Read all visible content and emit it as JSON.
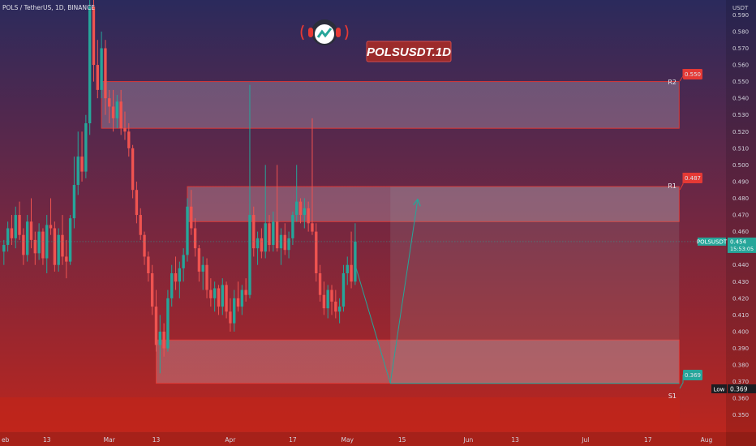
{
  "header": {
    "symbol_info": "POLS / TetherUS, 1D, BINANCE"
  },
  "watermark": {
    "text": "POLSUSDT.1D",
    "logo_icon": "headphones-mascot-icon"
  },
  "price_scale": {
    "currency": "USDT",
    "ticks": [
      "0.590",
      "0.580",
      "0.570",
      "0.560",
      "0.550",
      "0.540",
      "0.530",
      "0.520",
      "0.510",
      "0.500",
      "0.490",
      "0.480",
      "0.470",
      "0.460",
      "0.450",
      "0.440",
      "0.430",
      "0.420",
      "0.410",
      "0.400",
      "0.390",
      "0.380",
      "0.370",
      "0.360",
      "0.350"
    ]
  },
  "time_scale": {
    "labels": [
      "eb",
      "13",
      "Mar",
      "13",
      "Apr",
      "17",
      "May",
      "15",
      "Jun",
      "13",
      "Jul",
      "17",
      "Aug"
    ]
  },
  "current_price": {
    "label": "POLSUSDT",
    "value": "0.454",
    "countdown": "15:53:05"
  },
  "low_marker": {
    "label": "Low",
    "value": "0.369"
  },
  "levels": [
    {
      "label": "R2",
      "price": "0.550",
      "color": "#e53935"
    },
    {
      "label": "R1",
      "price": "0.487",
      "color": "#e53935"
    },
    {
      "label": "S1",
      "price": "0.369",
      "color": "#26a69a"
    }
  ],
  "colors": {
    "up": "#26a69a",
    "down": "#ef5350",
    "bg_top": "#2b2a5c",
    "bg_bottom": "#c0261c"
  },
  "chart_data": {
    "type": "candlestick",
    "title": "POLSUSDT.1D",
    "ylim": [
      0.345,
      0.597
    ],
    "x_range": [
      "2023-02-01",
      "2023-08-06"
    ],
    "candles": [
      [
        "2023-02-02",
        0.448,
        0.455,
        0.44,
        0.452
      ],
      [
        "2023-02-03",
        0.452,
        0.466,
        0.448,
        0.462
      ],
      [
        "2023-02-04",
        0.462,
        0.47,
        0.452,
        0.456
      ],
      [
        "2023-02-05",
        0.456,
        0.475,
        0.45,
        0.47
      ],
      [
        "2023-02-06",
        0.47,
        0.478,
        0.455,
        0.458
      ],
      [
        "2023-02-07",
        0.458,
        0.462,
        0.44,
        0.446
      ],
      [
        "2023-02-08",
        0.446,
        0.47,
        0.442,
        0.466
      ],
      [
        "2023-02-09",
        0.466,
        0.48,
        0.45,
        0.455
      ],
      [
        "2023-02-10",
        0.455,
        0.46,
        0.44,
        0.447
      ],
      [
        "2023-02-11",
        0.447,
        0.465,
        0.443,
        0.46
      ],
      [
        "2023-02-12",
        0.46,
        0.462,
        0.44,
        0.444
      ],
      [
        "2023-02-13",
        0.444,
        0.47,
        0.435,
        0.464
      ],
      [
        "2023-02-14",
        0.464,
        0.48,
        0.458,
        0.462
      ],
      [
        "2023-02-15",
        0.462,
        0.466,
        0.436,
        0.44
      ],
      [
        "2023-02-16",
        0.44,
        0.462,
        0.436,
        0.458
      ],
      [
        "2023-02-17",
        0.458,
        0.47,
        0.44,
        0.445
      ],
      [
        "2023-02-18",
        0.445,
        0.455,
        0.432,
        0.442
      ],
      [
        "2023-02-19",
        0.442,
        0.47,
        0.44,
        0.468
      ],
      [
        "2023-02-20",
        0.468,
        0.505,
        0.462,
        0.488
      ],
      [
        "2023-02-21",
        0.488,
        0.52,
        0.482,
        0.505
      ],
      [
        "2023-02-22",
        0.505,
        0.52,
        0.49,
        0.496
      ],
      [
        "2023-02-23",
        0.496,
        0.53,
        0.492,
        0.525
      ],
      [
        "2023-02-24",
        0.525,
        0.6,
        0.518,
        0.595
      ],
      [
        "2023-02-25",
        0.595,
        0.6,
        0.55,
        0.56
      ],
      [
        "2023-02-26",
        0.56,
        0.575,
        0.54,
        0.545
      ],
      [
        "2023-02-27",
        0.545,
        0.58,
        0.54,
        0.57
      ],
      [
        "2023-02-28",
        0.57,
        0.575,
        0.53,
        0.54
      ],
      [
        "2023-03-01",
        0.54,
        0.545,
        0.525,
        0.535
      ],
      [
        "2023-03-02",
        0.535,
        0.545,
        0.52,
        0.528
      ],
      [
        "2023-03-03",
        0.528,
        0.542,
        0.522,
        0.538
      ],
      [
        "2023-03-04",
        0.538,
        0.545,
        0.518,
        0.522
      ],
      [
        "2023-03-05",
        0.522,
        0.532,
        0.515,
        0.52
      ],
      [
        "2023-03-06",
        0.52,
        0.525,
        0.505,
        0.51
      ],
      [
        "2023-03-07",
        0.51,
        0.512,
        0.48,
        0.485
      ],
      [
        "2023-03-08",
        0.485,
        0.49,
        0.465,
        0.47
      ],
      [
        "2023-03-09",
        0.47,
        0.474,
        0.455,
        0.458
      ],
      [
        "2023-03-10",
        0.458,
        0.46,
        0.44,
        0.445
      ],
      [
        "2023-03-11",
        0.445,
        0.448,
        0.43,
        0.435
      ],
      [
        "2023-03-12",
        0.435,
        0.44,
        0.41,
        0.415
      ],
      [
        "2023-03-13",
        0.415,
        0.425,
        0.388,
        0.392
      ],
      [
        "2023-03-14",
        0.392,
        0.41,
        0.375,
        0.4
      ],
      [
        "2023-03-15",
        0.4,
        0.405,
        0.385,
        0.39
      ],
      [
        "2023-03-16",
        0.39,
        0.425,
        0.388,
        0.42
      ],
      [
        "2023-03-17",
        0.42,
        0.44,
        0.415,
        0.435
      ],
      [
        "2023-03-18",
        0.435,
        0.445,
        0.425,
        0.43
      ],
      [
        "2023-03-19",
        0.43,
        0.442,
        0.42,
        0.438
      ],
      [
        "2023-03-20",
        0.438,
        0.45,
        0.43,
        0.446
      ],
      [
        "2023-03-21",
        0.446,
        0.48,
        0.442,
        0.475
      ],
      [
        "2023-03-22",
        0.475,
        0.485,
        0.458,
        0.462
      ],
      [
        "2023-03-23",
        0.462,
        0.468,
        0.445,
        0.45
      ],
      [
        "2023-03-24",
        0.45,
        0.452,
        0.43,
        0.436
      ],
      [
        "2023-03-25",
        0.436,
        0.445,
        0.425,
        0.44
      ],
      [
        "2023-03-26",
        0.44,
        0.444,
        0.42,
        0.425
      ],
      [
        "2023-03-27",
        0.425,
        0.432,
        0.415,
        0.42
      ],
      [
        "2023-03-28",
        0.42,
        0.43,
        0.412,
        0.426
      ],
      [
        "2023-03-29",
        0.426,
        0.428,
        0.41,
        0.415
      ],
      [
        "2023-03-30",
        0.415,
        0.432,
        0.41,
        0.428
      ],
      [
        "2023-03-31",
        0.428,
        0.43,
        0.408,
        0.412
      ],
      [
        "2023-04-01",
        0.412,
        0.42,
        0.4,
        0.405
      ],
      [
        "2023-04-02",
        0.405,
        0.425,
        0.4,
        0.42
      ],
      [
        "2023-04-03",
        0.42,
        0.43,
        0.412,
        0.415
      ],
      [
        "2023-04-04",
        0.415,
        0.428,
        0.41,
        0.425
      ],
      [
        "2023-04-05",
        0.425,
        0.432,
        0.418,
        0.422
      ],
      [
        "2023-04-06",
        0.422,
        0.548,
        0.42,
        0.47
      ],
      [
        "2023-04-07",
        0.47,
        0.475,
        0.445,
        0.45
      ],
      [
        "2023-04-08",
        0.45,
        0.46,
        0.44,
        0.456
      ],
      [
        "2023-04-09",
        0.456,
        0.462,
        0.444,
        0.448
      ],
      [
        "2023-04-10",
        0.448,
        0.5,
        0.444,
        0.465
      ],
      [
        "2023-04-11",
        0.465,
        0.47,
        0.448,
        0.452
      ],
      [
        "2023-04-12",
        0.452,
        0.472,
        0.448,
        0.466
      ],
      [
        "2023-04-13",
        0.466,
        0.5,
        0.448,
        0.45
      ],
      [
        "2023-04-14",
        0.45,
        0.462,
        0.44,
        0.458
      ],
      [
        "2023-04-15",
        0.458,
        0.465,
        0.446,
        0.449
      ],
      [
        "2023-04-16",
        0.449,
        0.46,
        0.444,
        0.456
      ],
      [
        "2023-04-17",
        0.456,
        0.472,
        0.452,
        0.47
      ],
      [
        "2023-04-18",
        0.47,
        0.5,
        0.466,
        0.478
      ],
      [
        "2023-04-19",
        0.478,
        0.48,
        0.465,
        0.47
      ],
      [
        "2023-04-20",
        0.47,
        0.48,
        0.462,
        0.474
      ],
      [
        "2023-04-21",
        0.474,
        0.478,
        0.46,
        0.465
      ],
      [
        "2023-04-22",
        0.465,
        0.528,
        0.458,
        0.46
      ],
      [
        "2023-04-23",
        0.46,
        0.465,
        0.43,
        0.435
      ],
      [
        "2023-04-24",
        0.435,
        0.44,
        0.418,
        0.422
      ],
      [
        "2023-04-25",
        0.422,
        0.43,
        0.41,
        0.414
      ],
      [
        "2023-04-26",
        0.414,
        0.428,
        0.408,
        0.425
      ],
      [
        "2023-04-27",
        0.425,
        0.428,
        0.41,
        0.418
      ],
      [
        "2023-04-28",
        0.418,
        0.425,
        0.408,
        0.412
      ],
      [
        "2023-04-29",
        0.412,
        0.42,
        0.405,
        0.415
      ],
      [
        "2023-04-30",
        0.415,
        0.44,
        0.412,
        0.435
      ],
      [
        "2023-05-01",
        0.435,
        0.445,
        0.428,
        0.44
      ],
      [
        "2023-05-02",
        0.44,
        0.46,
        0.426,
        0.43
      ],
      [
        "2023-05-03",
        0.43,
        0.465,
        0.428,
        0.454
      ]
    ],
    "zones": [
      {
        "name": "R2",
        "from": "2023-02-27",
        "to": "2023-07-25",
        "price_top": 0.55,
        "price_bottom": 0.522
      },
      {
        "name": "R1",
        "from": "2023-03-21",
        "to": "2023-07-25",
        "price_top": 0.487,
        "price_bottom": 0.466
      },
      {
        "name": "S1",
        "from": "2023-03-13",
        "to": "2023-07-25",
        "price_top": 0.395,
        "price_bottom": 0.369
      }
    ],
    "projection": [
      {
        "date": "2023-05-03",
        "price": 0.44
      },
      {
        "date": "2023-05-12",
        "price": 0.369
      },
      {
        "date": "2023-05-19",
        "price": 0.479
      }
    ]
  }
}
